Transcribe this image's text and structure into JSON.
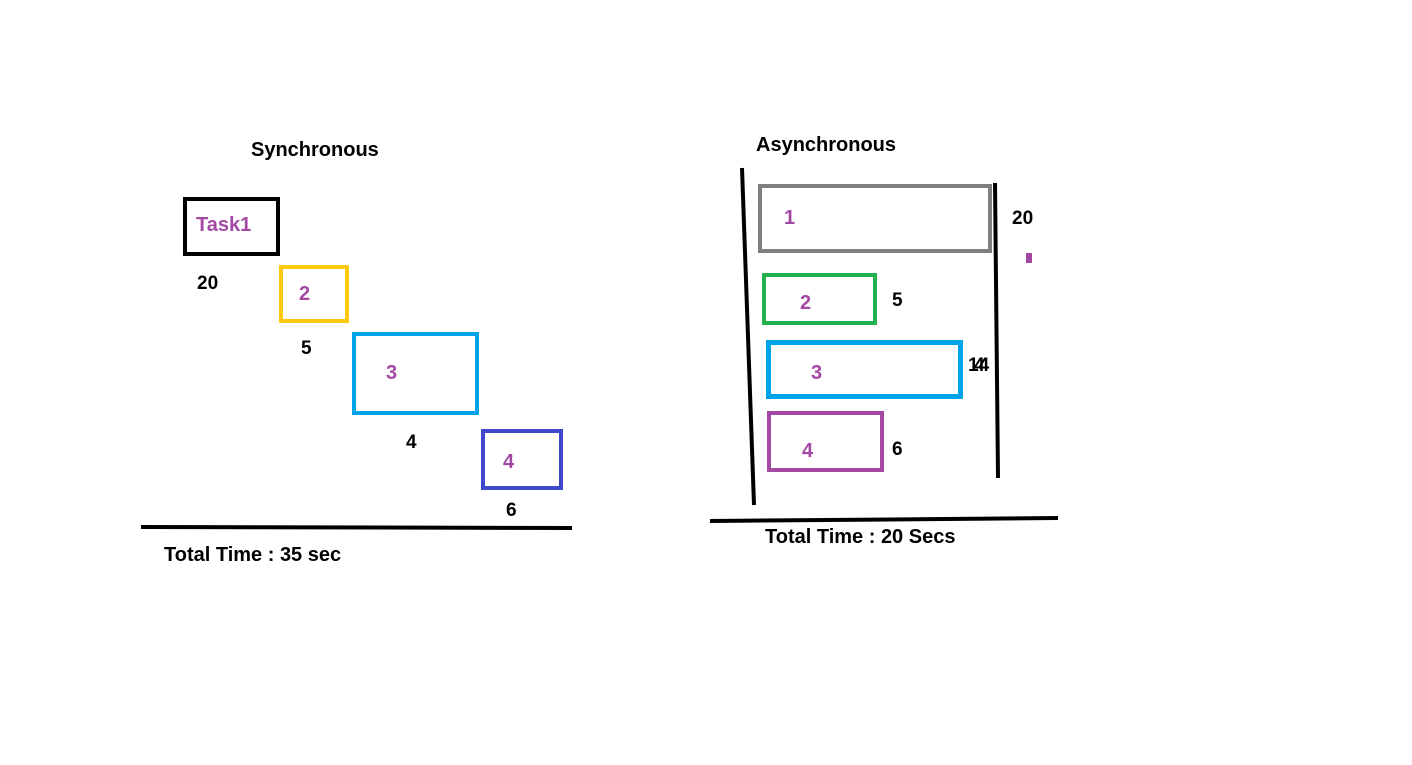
{
  "colors": {
    "task_label": "#a349a4",
    "sync_task1_border": "#000000",
    "sync_task2_border": "#ffc90e",
    "sync_task3_border": "#00a2e8",
    "sync_task4_border": "#3f48cc",
    "async_task1_border": "#7f7f7f",
    "async_task2_border": "#22b14c",
    "async_task3_border": "#00a2e8",
    "async_task4_border": "#a349a4",
    "lines": "#000000"
  },
  "synchronous": {
    "title": "Synchronous",
    "tasks": [
      {
        "label": "Task1",
        "duration": "20"
      },
      {
        "label": "2",
        "duration": "5"
      },
      {
        "label": "3",
        "duration": "4"
      },
      {
        "label": "4",
        "duration": "6"
      }
    ],
    "total": "Total Time : 35 sec"
  },
  "asynchronous": {
    "title": "Asynchronous",
    "tasks": [
      {
        "label": "1",
        "duration": "20"
      },
      {
        "label": "2",
        "duration": "5"
      },
      {
        "label": "3",
        "duration": "14"
      },
      {
        "label": "4",
        "duration": "6"
      }
    ],
    "task3_overwritten_digit": "4",
    "total": "Total Time : 20 Secs"
  }
}
